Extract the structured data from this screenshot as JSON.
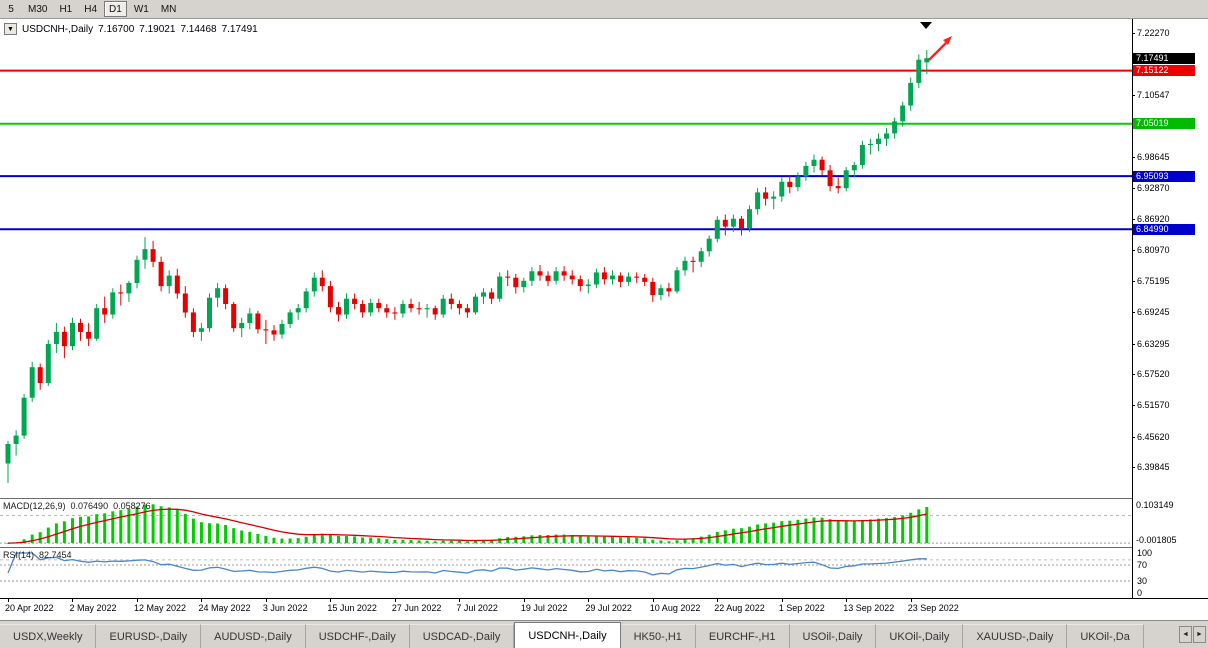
{
  "toolbar": {
    "timeframes": [
      {
        "label": "5",
        "active": false
      },
      {
        "label": "M30",
        "active": false
      },
      {
        "label": "H1",
        "active": false
      },
      {
        "label": "H4",
        "active": false
      },
      {
        "label": "D1",
        "active": true
      },
      {
        "label": "W1",
        "active": false
      },
      {
        "label": "MN",
        "active": false
      }
    ]
  },
  "chart_header": {
    "dropdown_icon": "▼",
    "symbol": "USDCNH-,Daily",
    "open": "7.16700",
    "high": "7.19021",
    "low": "7.14468",
    "close": "7.17491"
  },
  "price_axis": {
    "ticks": [
      "7.22270",
      "7.10547",
      "6.98645",
      "6.92870",
      "6.86920",
      "6.80970",
      "6.75195",
      "6.69245",
      "6.63295",
      "6.57520",
      "6.51570",
      "6.45620",
      "6.39845"
    ],
    "badges": [
      {
        "text": "7.17491",
        "bg": "#000000",
        "fg": "#ffffff"
      },
      {
        "text": "7.15122",
        "bg": "#ee0000",
        "fg": "#ffffff"
      },
      {
        "text": "7.05019",
        "bg": "#00bb00",
        "fg": "#ffffff"
      },
      {
        "text": "6.95093",
        "bg": "#0000cc",
        "fg": "#ffffff"
      },
      {
        "text": "6.84990",
        "bg": "#0000cc",
        "fg": "#ffffff"
      }
    ]
  },
  "macd_panel": {
    "name": "MACD(12,26,9)",
    "value_main": "0.076490",
    "value_signal": "0.058276",
    "axis_top": "0.103149",
    "axis_bottom": "-0.001805"
  },
  "rsi_panel": {
    "name": "RSI(14)",
    "value": "82.7454",
    "axis_labels": [
      "100",
      "70",
      "30",
      "0"
    ]
  },
  "time_axis": {
    "labels": [
      "20 Apr 2022",
      "2 May 2022",
      "12 May 2022",
      "24 May 2022",
      "3 Jun 2022",
      "15 Jun 2022",
      "27 Jun 2022",
      "7 Jul 2022",
      "19 Jul 2022",
      "29 Jul 2022",
      "10 Aug 2022",
      "22 Aug 2022",
      "1 Sep 2022",
      "13 Sep 2022",
      "23 Sep 2022"
    ]
  },
  "tabs": {
    "scroll_left": "◄",
    "scroll_right": "►",
    "items": [
      {
        "label": "USDX,Weekly",
        "active": false
      },
      {
        "label": "EURUSD-,Daily",
        "active": false
      },
      {
        "label": "AUDUSD-,Daily",
        "active": false
      },
      {
        "label": "USDCHF-,Daily",
        "active": false
      },
      {
        "label": "USDCAD-,Daily",
        "active": false
      },
      {
        "label": "USDCNH-,Daily",
        "active": true
      },
      {
        "label": "HK50-,H1",
        "active": false
      },
      {
        "label": "EURCHF-,H1",
        "active": false
      },
      {
        "label": "USOil-,Daily",
        "active": false
      },
      {
        "label": "UKOil-,Daily",
        "active": false
      },
      {
        "label": "XAUUSD-,Daily",
        "active": false
      },
      {
        "label": "UKOil-,Da",
        "active": false
      }
    ]
  },
  "chart_data": {
    "type": "candlestick",
    "symbol": "USDCNH",
    "period": "Daily",
    "last_ohlc": {
      "open": 7.167,
      "high": 7.19021,
      "low": 7.14468,
      "close": 7.17491
    },
    "price_range": {
      "min": 6.3395,
      "max": 7.2493
    },
    "up_color": "#00a651",
    "down_color": "#e60000",
    "hlines": [
      {
        "value": 7.15122,
        "color": "#ee0000",
        "width": 2
      },
      {
        "value": 7.05019,
        "color": "#00d000",
        "width": 2
      },
      {
        "value": 6.95093,
        "color": "#0000cc",
        "width": 2
      },
      {
        "value": 6.8499,
        "color": "#0000cc",
        "width": 2
      }
    ],
    "annotations": {
      "up_arrow_color": "#ff2222",
      "top_marker_color": "#000000"
    },
    "indicators": {
      "macd": {
        "params": [
          12,
          26,
          9
        ],
        "histogram_color": "#00cc00",
        "signal_color": "#d40000",
        "current_main": 0.07649,
        "current_signal": 0.058276,
        "axis_max": 0.103149,
        "axis_min": -0.001805
      },
      "rsi": {
        "period": 14,
        "line_color": "#4a86c8",
        "current": 82.7454,
        "levels": [
          70,
          30
        ]
      }
    },
    "candles": [
      [
        6.405,
        6.448,
        6.368,
        6.442
      ],
      [
        6.442,
        6.468,
        6.42,
        6.458
      ],
      [
        6.458,
        6.537,
        6.452,
        6.53
      ],
      [
        6.53,
        6.598,
        6.522,
        6.588
      ],
      [
        6.588,
        6.595,
        6.545,
        6.558
      ],
      [
        6.558,
        6.64,
        6.552,
        6.632
      ],
      [
        6.632,
        6.672,
        6.615,
        6.655
      ],
      [
        6.655,
        6.665,
        6.605,
        6.628
      ],
      [
        6.628,
        6.682,
        6.62,
        6.672
      ],
      [
        6.672,
        6.68,
        6.638,
        6.655
      ],
      [
        6.655,
        6.672,
        6.628,
        6.642
      ],
      [
        6.642,
        6.708,
        6.638,
        6.7
      ],
      [
        6.7,
        6.722,
        6.672,
        6.688
      ],
      [
        6.688,
        6.738,
        6.68,
        6.73
      ],
      [
        6.73,
        6.745,
        6.705,
        6.728
      ],
      [
        6.728,
        6.752,
        6.712,
        6.748
      ],
      [
        6.748,
        6.8,
        6.738,
        6.792
      ],
      [
        6.792,
        6.835,
        6.775,
        6.812
      ],
      [
        6.812,
        6.828,
        6.778,
        6.788
      ],
      [
        6.788,
        6.798,
        6.732,
        6.742
      ],
      [
        6.742,
        6.772,
        6.728,
        6.762
      ],
      [
        6.762,
        6.775,
        6.718,
        6.728
      ],
      [
        6.728,
        6.742,
        6.682,
        6.692
      ],
      [
        6.692,
        6.7,
        6.645,
        6.655
      ],
      [
        6.655,
        6.672,
        6.638,
        6.662
      ],
      [
        6.662,
        6.728,
        6.655,
        6.72
      ],
      [
        6.72,
        6.748,
        6.702,
        6.738
      ],
      [
        6.738,
        6.745,
        6.698,
        6.708
      ],
      [
        6.708,
        6.712,
        6.655,
        6.662
      ],
      [
        6.662,
        6.682,
        6.645,
        6.672
      ],
      [
        6.672,
        6.7,
        6.66,
        6.69
      ],
      [
        6.69,
        6.695,
        6.652,
        6.66
      ],
      [
        6.66,
        6.678,
        6.632,
        6.658
      ],
      [
        6.658,
        6.668,
        6.638,
        6.65
      ],
      [
        6.65,
        6.678,
        6.642,
        6.67
      ],
      [
        6.67,
        6.698,
        6.662,
        6.692
      ],
      [
        6.692,
        6.708,
        6.678,
        6.7
      ],
      [
        6.7,
        6.738,
        6.692,
        6.732
      ],
      [
        6.732,
        6.768,
        6.722,
        6.758
      ],
      [
        6.758,
        6.772,
        6.732,
        6.742
      ],
      [
        6.742,
        6.752,
        6.692,
        6.702
      ],
      [
        6.702,
        6.712,
        6.675,
        6.688
      ],
      [
        6.688,
        6.728,
        6.68,
        6.718
      ],
      [
        6.718,
        6.728,
        6.698,
        6.708
      ],
      [
        6.708,
        6.715,
        6.682,
        6.692
      ],
      [
        6.692,
        6.718,
        6.685,
        6.71
      ],
      [
        6.71,
        6.718,
        6.692,
        6.7
      ],
      [
        6.7,
        6.708,
        6.682,
        6.692
      ],
      [
        6.692,
        6.702,
        6.678,
        6.69
      ],
      [
        6.69,
        6.715,
        6.682,
        6.708
      ],
      [
        6.708,
        6.718,
        6.692,
        6.7
      ],
      [
        6.7,
        6.712,
        6.688,
        6.698
      ],
      [
        6.698,
        6.708,
        6.682,
        6.7
      ],
      [
        6.7,
        6.705,
        6.678,
        6.688
      ],
      [
        6.688,
        6.725,
        6.682,
        6.718
      ],
      [
        6.718,
        6.728,
        6.698,
        6.708
      ],
      [
        6.708,
        6.715,
        6.688,
        6.7
      ],
      [
        6.7,
        6.708,
        6.682,
        6.692
      ],
      [
        6.692,
        6.728,
        6.688,
        6.722
      ],
      [
        6.722,
        6.738,
        6.708,
        6.73
      ],
      [
        6.73,
        6.738,
        6.708,
        6.718
      ],
      [
        6.718,
        6.768,
        6.712,
        6.76
      ],
      [
        6.76,
        6.772,
        6.742,
        6.758
      ],
      [
        6.758,
        6.765,
        6.728,
        6.74
      ],
      [
        6.74,
        6.758,
        6.73,
        6.752
      ],
      [
        6.752,
        6.778,
        6.742,
        6.77
      ],
      [
        6.77,
        6.782,
        6.752,
        6.762
      ],
      [
        6.762,
        6.77,
        6.742,
        6.752
      ],
      [
        6.752,
        6.778,
        6.745,
        6.77
      ],
      [
        6.77,
        6.78,
        6.752,
        6.762
      ],
      [
        6.762,
        6.772,
        6.745,
        6.755
      ],
      [
        6.755,
        6.762,
        6.732,
        6.742
      ],
      [
        6.742,
        6.755,
        6.728,
        6.745
      ],
      [
        6.745,
        6.775,
        6.738,
        6.768
      ],
      [
        6.768,
        6.778,
        6.745,
        6.755
      ],
      [
        6.755,
        6.772,
        6.745,
        6.762
      ],
      [
        6.762,
        6.768,
        6.74,
        6.75
      ],
      [
        6.75,
        6.768,
        6.742,
        6.76
      ],
      [
        6.76,
        6.768,
        6.748,
        6.758
      ],
      [
        6.758,
        6.765,
        6.742,
        6.75
      ],
      [
        6.75,
        6.758,
        6.712,
        6.725
      ],
      [
        6.725,
        6.745,
        6.715,
        6.738
      ],
      [
        6.738,
        6.748,
        6.722,
        6.732
      ],
      [
        6.732,
        6.778,
        6.728,
        6.772
      ],
      [
        6.772,
        6.798,
        6.762,
        6.79
      ],
      [
        6.79,
        6.798,
        6.768,
        6.788
      ],
      [
        6.788,
        6.815,
        6.778,
        6.808
      ],
      [
        6.808,
        6.838,
        6.798,
        6.832
      ],
      [
        6.832,
        6.875,
        6.825,
        6.868
      ],
      [
        6.868,
        6.878,
        6.838,
        6.855
      ],
      [
        6.855,
        6.878,
        6.845,
        6.87
      ],
      [
        6.87,
        6.875,
        6.838,
        6.852
      ],
      [
        6.852,
        6.895,
        6.845,
        6.888
      ],
      [
        6.888,
        6.928,
        6.878,
        6.92
      ],
      [
        6.92,
        6.93,
        6.895,
        6.908
      ],
      [
        6.908,
        6.922,
        6.888,
        6.912
      ],
      [
        6.912,
        6.948,
        6.902,
        6.94
      ],
      [
        6.94,
        6.952,
        6.918,
        6.93
      ],
      [
        6.93,
        6.958,
        6.922,
        6.95
      ],
      [
        6.95,
        6.978,
        6.942,
        6.97
      ],
      [
        6.97,
        6.992,
        6.958,
        6.982
      ],
      [
        6.982,
        6.988,
        6.952,
        6.962
      ],
      [
        6.962,
        6.972,
        6.922,
        6.932
      ],
      [
        6.932,
        6.948,
        6.918,
        6.928
      ],
      [
        6.928,
        6.968,
        6.922,
        6.962
      ],
      [
        6.962,
        6.978,
        6.948,
        6.972
      ],
      [
        6.972,
        7.018,
        6.965,
        7.01
      ],
      [
        7.01,
        7.022,
        6.992,
        7.012
      ],
      [
        7.012,
        7.032,
        6.998,
        7.022
      ],
      [
        7.022,
        7.042,
        7.008,
        7.032
      ],
      [
        7.032,
        7.062,
        7.022,
        7.055
      ],
      [
        7.055,
        7.092,
        7.045,
        7.085
      ],
      [
        7.085,
        7.138,
        7.075,
        7.128
      ],
      [
        7.128,
        7.182,
        7.118,
        7.172
      ],
      [
        7.167,
        7.19021,
        7.14468,
        7.17491
      ]
    ]
  }
}
